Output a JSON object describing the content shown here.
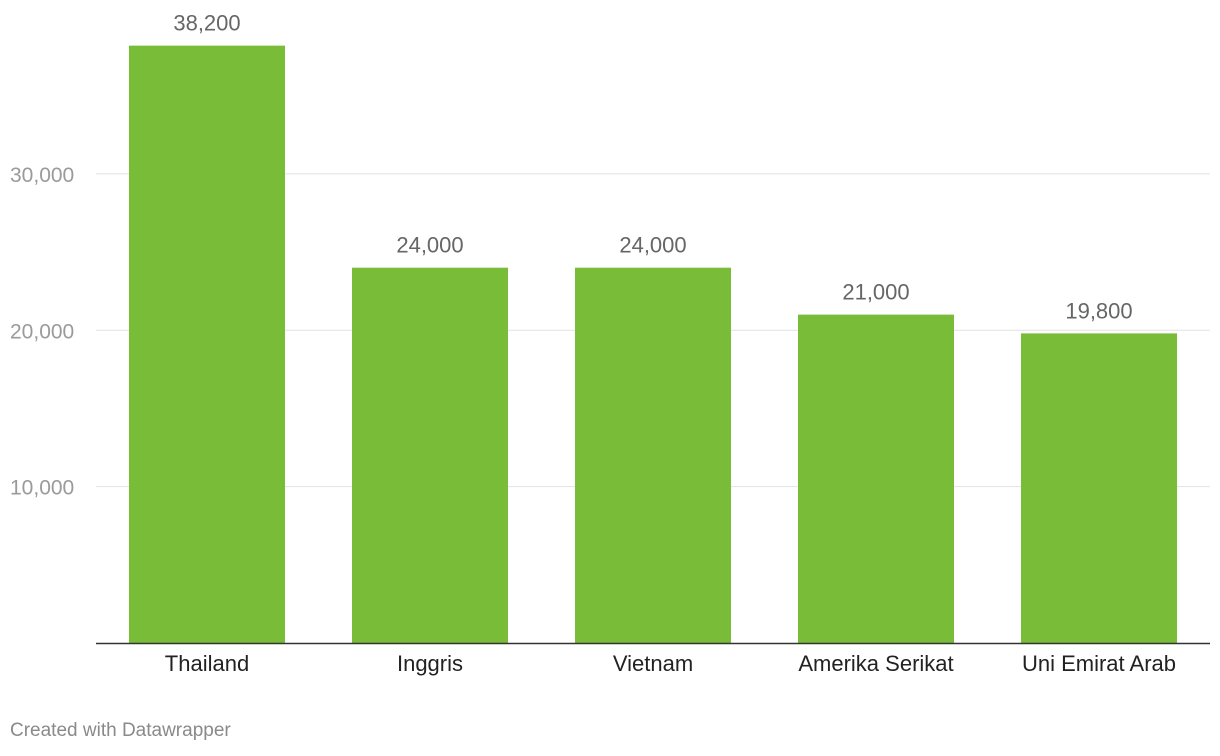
{
  "chart_data": {
    "type": "bar",
    "categories": [
      "Thailand",
      "Inggris",
      "Vietnam",
      "Amerika Serikat",
      "Uni Emirat Arab"
    ],
    "values": [
      38200,
      24000,
      24000,
      21000,
      19800
    ],
    "value_labels": [
      "38,200",
      "24,000",
      "24,000",
      "21,000",
      "19,800"
    ],
    "ylim": [
      0,
      40000
    ],
    "yticks": [
      10000,
      20000,
      30000
    ],
    "ytick_labels": [
      "10,000",
      "20,000",
      "30,000"
    ],
    "grid": true,
    "bar_color": "#78bc38"
  },
  "footer": "Created with Datawrapper"
}
